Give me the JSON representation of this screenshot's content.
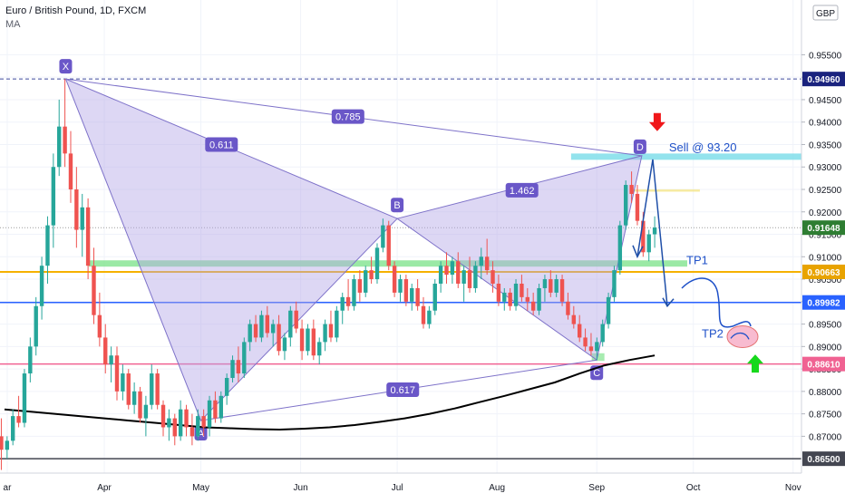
{
  "header": {
    "title": "Euro / British Pound, 1D, FXCM",
    "indicator": "MA"
  },
  "colors": {
    "bull": "#26a69a",
    "bear": "#ef5350",
    "pattern_fill": "#b3a7e6",
    "pattern_line": "#7e72c9",
    "label_bg": "#6a57c8",
    "blue_level": "#2962ff",
    "orange_level": "#f5b100",
    "pink_level": "#f06292",
    "dark_level": "#434651",
    "ma": "#000000",
    "sell_zone": "#80deea",
    "tp1_zone": "#81e48f",
    "arrow_red": "#f0171a",
    "arrow_green": "#17d81c",
    "annot_text": "#1e50c8"
  },
  "chart_data": {
    "type": "candlestick",
    "instrument": "Euro / British Pound",
    "timeframe": "1D",
    "source": "FXCM",
    "currency": "GBP",
    "x_ticks": [
      "ar",
      "Apr",
      "May",
      "Jun",
      "Jul",
      "Aug",
      "Sep",
      "Oct",
      "Nov"
    ],
    "y_ticks": [
      "0.95500",
      "0.95000",
      "0.94500",
      "0.94000",
      "0.93500",
      "0.93000",
      "0.92500",
      "0.92000",
      "0.91500",
      "0.91000",
      "0.90500",
      "0.90000",
      "0.89500",
      "0.89000",
      "0.88500",
      "0.88000",
      "0.87500",
      "0.87000"
    ],
    "ylim": [
      0.8618,
      0.9672
    ],
    "price_labels": [
      {
        "id": "x-level",
        "text": "0.94960",
        "value": 0.9496,
        "color": "#1a237e"
      },
      {
        "id": "last-price",
        "text": "0.91648",
        "value": 0.91648,
        "color": "#2e7d32"
      },
      {
        "id": "orange-level",
        "text": "0.90663",
        "value": 0.90663,
        "color": "#e8a300"
      },
      {
        "id": "blue-level",
        "text": "0.89982",
        "value": 0.89982,
        "color": "#2962ff"
      },
      {
        "id": "pink-level",
        "text": "0.88610",
        "value": 0.8861,
        "color": "#f06292"
      },
      {
        "id": "dark-level",
        "text": "0.86500",
        "value": 0.865,
        "color": "#434651"
      }
    ],
    "pattern": {
      "points": [
        {
          "label": "X",
          "date": "Mar 20",
          "price": 0.9496
        },
        {
          "label": "A",
          "date": "May 1",
          "price": 0.8735
        },
        {
          "label": "B",
          "date": "Jul 1",
          "price": 0.9185
        },
        {
          "label": "C",
          "date": "Sep 1",
          "price": 0.887
        },
        {
          "label": "D",
          "date": "Sep 15",
          "price": 0.9325
        }
      ],
      "ratios": [
        {
          "text": "0.611",
          "value": 0.611
        },
        {
          "text": "0.785",
          "value": 0.785
        },
        {
          "text": "1.462",
          "value": 1.462
        },
        {
          "text": "0.617",
          "value": 0.617
        }
      ]
    },
    "annotations": {
      "sell": "Sell @ 93.20",
      "tp1": "TP1",
      "tp2": "TP2"
    },
    "candles": [
      {
        "o": 0.87,
        "h": 0.874,
        "l": 0.8625,
        "c": 0.867
      },
      {
        "o": 0.867,
        "h": 0.87,
        "l": 0.865,
        "c": 0.869
      },
      {
        "o": 0.869,
        "h": 0.876,
        "l": 0.868,
        "c": 0.8745
      },
      {
        "o": 0.8745,
        "h": 0.879,
        "l": 0.872,
        "c": 0.873
      },
      {
        "o": 0.873,
        "h": 0.885,
        "l": 0.872,
        "c": 0.884
      },
      {
        "o": 0.884,
        "h": 0.892,
        "l": 0.882,
        "c": 0.89
      },
      {
        "o": 0.89,
        "h": 0.901,
        "l": 0.888,
        "c": 0.899
      },
      {
        "o": 0.899,
        "h": 0.91,
        "l": 0.896,
        "c": 0.908
      },
      {
        "o": 0.908,
        "h": 0.919,
        "l": 0.904,
        "c": 0.917
      },
      {
        "o": 0.917,
        "h": 0.933,
        "l": 0.912,
        "c": 0.93
      },
      {
        "o": 0.93,
        "h": 0.945,
        "l": 0.928,
        "c": 0.939
      },
      {
        "o": 0.939,
        "h": 0.9496,
        "l": 0.93,
        "c": 0.933
      },
      {
        "o": 0.933,
        "h": 0.938,
        "l": 0.922,
        "c": 0.925
      },
      {
        "o": 0.925,
        "h": 0.93,
        "l": 0.912,
        "c": 0.916
      },
      {
        "o": 0.916,
        "h": 0.924,
        "l": 0.91,
        "c": 0.921
      },
      {
        "o": 0.921,
        "h": 0.923,
        "l": 0.905,
        "c": 0.908
      },
      {
        "o": 0.908,
        "h": 0.912,
        "l": 0.895,
        "c": 0.897
      },
      {
        "o": 0.897,
        "h": 0.902,
        "l": 0.89,
        "c": 0.892
      },
      {
        "o": 0.892,
        "h": 0.895,
        "l": 0.884,
        "c": 0.886
      },
      {
        "o": 0.886,
        "h": 0.89,
        "l": 0.882,
        "c": 0.888
      },
      {
        "o": 0.888,
        "h": 0.89,
        "l": 0.878,
        "c": 0.88
      },
      {
        "o": 0.88,
        "h": 0.886,
        "l": 0.878,
        "c": 0.884
      },
      {
        "o": 0.884,
        "h": 0.885,
        "l": 0.876,
        "c": 0.877
      },
      {
        "o": 0.877,
        "h": 0.882,
        "l": 0.875,
        "c": 0.88
      },
      {
        "o": 0.88,
        "h": 0.881,
        "l": 0.873,
        "c": 0.874
      },
      {
        "o": 0.874,
        "h": 0.879,
        "l": 0.87,
        "c": 0.877
      },
      {
        "o": 0.877,
        "h": 0.886,
        "l": 0.876,
        "c": 0.884
      },
      {
        "o": 0.884,
        "h": 0.885,
        "l": 0.876,
        "c": 0.877
      },
      {
        "o": 0.877,
        "h": 0.878,
        "l": 0.87,
        "c": 0.872
      },
      {
        "o": 0.872,
        "h": 0.876,
        "l": 0.869,
        "c": 0.874
      },
      {
        "o": 0.874,
        "h": 0.875,
        "l": 0.868,
        "c": 0.87
      },
      {
        "o": 0.87,
        "h": 0.878,
        "l": 0.869,
        "c": 0.876
      },
      {
        "o": 0.876,
        "h": 0.877,
        "l": 0.87,
        "c": 0.872
      },
      {
        "o": 0.872,
        "h": 0.875,
        "l": 0.868,
        "c": 0.87
      },
      {
        "o": 0.87,
        "h": 0.876,
        "l": 0.869,
        "c": 0.8745
      },
      {
        "o": 0.8745,
        "h": 0.876,
        "l": 0.87,
        "c": 0.872
      },
      {
        "o": 0.872,
        "h": 0.879,
        "l": 0.87,
        "c": 0.878
      },
      {
        "o": 0.878,
        "h": 0.88,
        "l": 0.873,
        "c": 0.874
      },
      {
        "o": 0.874,
        "h": 0.88,
        "l": 0.873,
        "c": 0.879
      },
      {
        "o": 0.879,
        "h": 0.884,
        "l": 0.877,
        "c": 0.883
      },
      {
        "o": 0.883,
        "h": 0.888,
        "l": 0.882,
        "c": 0.887
      },
      {
        "o": 0.887,
        "h": 0.89,
        "l": 0.882,
        "c": 0.884
      },
      {
        "o": 0.884,
        "h": 0.892,
        "l": 0.883,
        "c": 0.891
      },
      {
        "o": 0.891,
        "h": 0.896,
        "l": 0.889,
        "c": 0.895
      },
      {
        "o": 0.895,
        "h": 0.897,
        "l": 0.891,
        "c": 0.892
      },
      {
        "o": 0.892,
        "h": 0.898,
        "l": 0.891,
        "c": 0.897
      },
      {
        "o": 0.897,
        "h": 0.899,
        "l": 0.892,
        "c": 0.893
      },
      {
        "o": 0.893,
        "h": 0.896,
        "l": 0.89,
        "c": 0.895
      },
      {
        "o": 0.895,
        "h": 0.897,
        "l": 0.888,
        "c": 0.889
      },
      {
        "o": 0.889,
        "h": 0.893,
        "l": 0.887,
        "c": 0.892
      },
      {
        "o": 0.892,
        "h": 0.899,
        "l": 0.89,
        "c": 0.898
      },
      {
        "o": 0.898,
        "h": 0.9,
        "l": 0.893,
        "c": 0.894
      },
      {
        "o": 0.894,
        "h": 0.896,
        "l": 0.887,
        "c": 0.889
      },
      {
        "o": 0.889,
        "h": 0.895,
        "l": 0.888,
        "c": 0.894
      },
      {
        "o": 0.894,
        "h": 0.896,
        "l": 0.887,
        "c": 0.888
      },
      {
        "o": 0.888,
        "h": 0.892,
        "l": 0.886,
        "c": 0.891
      },
      {
        "o": 0.891,
        "h": 0.896,
        "l": 0.889,
        "c": 0.895
      },
      {
        "o": 0.895,
        "h": 0.898,
        "l": 0.891,
        "c": 0.892
      },
      {
        "o": 0.892,
        "h": 0.899,
        "l": 0.891,
        "c": 0.898
      },
      {
        "o": 0.898,
        "h": 0.902,
        "l": 0.895,
        "c": 0.901
      },
      {
        "o": 0.901,
        "h": 0.905,
        "l": 0.898,
        "c": 0.899
      },
      {
        "o": 0.899,
        "h": 0.906,
        "l": 0.898,
        "c": 0.905
      },
      {
        "o": 0.905,
        "h": 0.907,
        "l": 0.9,
        "c": 0.902
      },
      {
        "o": 0.902,
        "h": 0.908,
        "l": 0.901,
        "c": 0.907
      },
      {
        "o": 0.907,
        "h": 0.91,
        "l": 0.904,
        "c": 0.905
      },
      {
        "o": 0.905,
        "h": 0.913,
        "l": 0.904,
        "c": 0.912
      },
      {
        "o": 0.912,
        "h": 0.9185,
        "l": 0.911,
        "c": 0.917
      },
      {
        "o": 0.917,
        "h": 0.918,
        "l": 0.907,
        "c": 0.908
      },
      {
        "o": 0.908,
        "h": 0.909,
        "l": 0.901,
        "c": 0.902
      },
      {
        "o": 0.902,
        "h": 0.906,
        "l": 0.9,
        "c": 0.905
      },
      {
        "o": 0.905,
        "h": 0.906,
        "l": 0.899,
        "c": 0.9
      },
      {
        "o": 0.9,
        "h": 0.904,
        "l": 0.898,
        "c": 0.903
      },
      {
        "o": 0.903,
        "h": 0.905,
        "l": 0.898,
        "c": 0.899
      },
      {
        "o": 0.899,
        "h": 0.901,
        "l": 0.894,
        "c": 0.895
      },
      {
        "o": 0.895,
        "h": 0.899,
        "l": 0.894,
        "c": 0.898
      },
      {
        "o": 0.898,
        "h": 0.905,
        "l": 0.897,
        "c": 0.904
      },
      {
        "o": 0.904,
        "h": 0.909,
        "l": 0.902,
        "c": 0.908
      },
      {
        "o": 0.908,
        "h": 0.911,
        "l": 0.904,
        "c": 0.906
      },
      {
        "o": 0.906,
        "h": 0.91,
        "l": 0.904,
        "c": 0.909
      },
      {
        "o": 0.909,
        "h": 0.911,
        "l": 0.903,
        "c": 0.904
      },
      {
        "o": 0.904,
        "h": 0.908,
        "l": 0.9,
        "c": 0.907
      },
      {
        "o": 0.907,
        "h": 0.91,
        "l": 0.902,
        "c": 0.903
      },
      {
        "o": 0.903,
        "h": 0.909,
        "l": 0.902,
        "c": 0.908
      },
      {
        "o": 0.908,
        "h": 0.912,
        "l": 0.905,
        "c": 0.91
      },
      {
        "o": 0.91,
        "h": 0.914,
        "l": 0.906,
        "c": 0.907
      },
      {
        "o": 0.907,
        "h": 0.909,
        "l": 0.902,
        "c": 0.904
      },
      {
        "o": 0.904,
        "h": 0.906,
        "l": 0.899,
        "c": 0.9
      },
      {
        "o": 0.9,
        "h": 0.903,
        "l": 0.898,
        "c": 0.902
      },
      {
        "o": 0.902,
        "h": 0.903,
        "l": 0.898,
        "c": 0.899
      },
      {
        "o": 0.899,
        "h": 0.905,
        "l": 0.898,
        "c": 0.904
      },
      {
        "o": 0.904,
        "h": 0.906,
        "l": 0.9,
        "c": 0.901
      },
      {
        "o": 0.901,
        "h": 0.903,
        "l": 0.898,
        "c": 0.9
      },
      {
        "o": 0.9,
        "h": 0.902,
        "l": 0.897,
        "c": 0.898
      },
      {
        "o": 0.898,
        "h": 0.904,
        "l": 0.897,
        "c": 0.903
      },
      {
        "o": 0.903,
        "h": 0.906,
        "l": 0.9,
        "c": 0.905
      },
      {
        "o": 0.905,
        "h": 0.907,
        "l": 0.901,
        "c": 0.902
      },
      {
        "o": 0.902,
        "h": 0.906,
        "l": 0.901,
        "c": 0.905
      },
      {
        "o": 0.905,
        "h": 0.906,
        "l": 0.899,
        "c": 0.9
      },
      {
        "o": 0.9,
        "h": 0.902,
        "l": 0.896,
        "c": 0.897
      },
      {
        "o": 0.897,
        "h": 0.899,
        "l": 0.894,
        "c": 0.895
      },
      {
        "o": 0.895,
        "h": 0.897,
        "l": 0.891,
        "c": 0.892
      },
      {
        "o": 0.892,
        "h": 0.894,
        "l": 0.889,
        "c": 0.89
      },
      {
        "o": 0.89,
        "h": 0.893,
        "l": 0.888,
        "c": 0.889
      },
      {
        "o": 0.889,
        "h": 0.892,
        "l": 0.887,
        "c": 0.891
      },
      {
        "o": 0.891,
        "h": 0.896,
        "l": 0.89,
        "c": 0.895
      },
      {
        "o": 0.895,
        "h": 0.902,
        "l": 0.894,
        "c": 0.901
      },
      {
        "o": 0.901,
        "h": 0.908,
        "l": 0.9,
        "c": 0.907
      },
      {
        "o": 0.907,
        "h": 0.918,
        "l": 0.906,
        "c": 0.917
      },
      {
        "o": 0.917,
        "h": 0.927,
        "l": 0.916,
        "c": 0.926
      },
      {
        "o": 0.926,
        "h": 0.929,
        "l": 0.922,
        "c": 0.924
      },
      {
        "o": 0.924,
        "h": 0.926,
        "l": 0.917,
        "c": 0.918
      },
      {
        "o": 0.918,
        "h": 0.92,
        "l": 0.91,
        "c": 0.911
      },
      {
        "o": 0.911,
        "h": 0.916,
        "l": 0.909,
        "c": 0.915
      },
      {
        "o": 0.915,
        "h": 0.919,
        "l": 0.912,
        "c": 0.9165
      }
    ],
    "ma": [
      0.876,
      0.8755,
      0.875,
      0.8745,
      0.874,
      0.8735,
      0.873,
      0.8725,
      0.872,
      0.8718,
      0.8716,
      0.8715,
      0.8717,
      0.872,
      0.8725,
      0.8732,
      0.874,
      0.875,
      0.8762,
      0.8776,
      0.879,
      0.8805,
      0.882,
      0.884,
      0.8858,
      0.887,
      0.888
    ]
  }
}
